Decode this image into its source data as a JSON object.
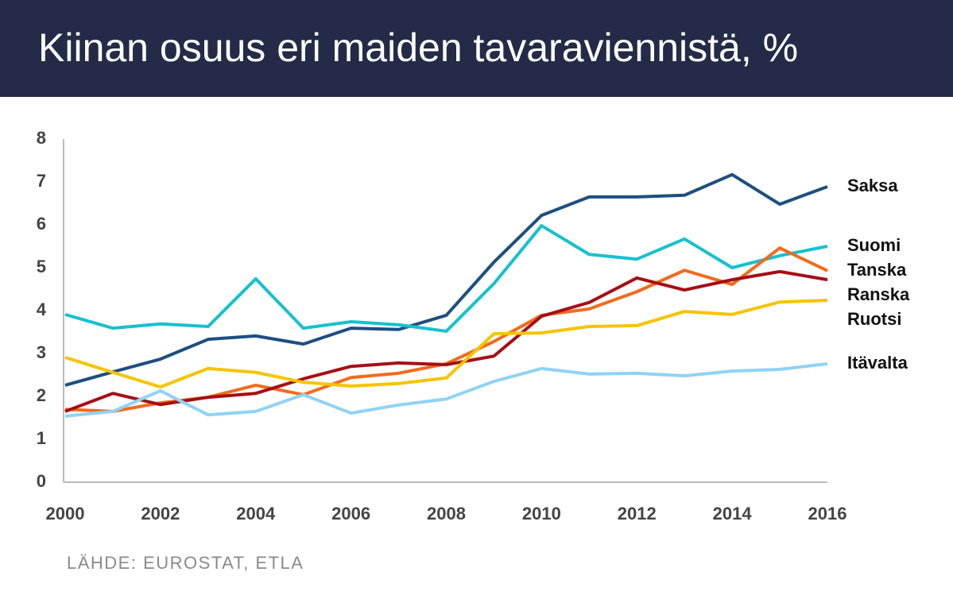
{
  "chart_data": {
    "type": "line",
    "title": "Kiinan osuus eri maiden tavaraviennistä, %",
    "source": "LÄHDE: EUROSTAT, ETLA",
    "x": [
      2000,
      2001,
      2002,
      2003,
      2004,
      2005,
      2006,
      2007,
      2008,
      2009,
      2010,
      2011,
      2012,
      2013,
      2014,
      2015,
      2016
    ],
    "xlim": [
      2000,
      2016
    ],
    "xticks": [
      2000,
      2002,
      2004,
      2006,
      2008,
      2010,
      2012,
      2014,
      2016
    ],
    "ylim": [
      0,
      8
    ],
    "yticks": [
      0,
      1,
      2,
      3,
      4,
      5,
      6,
      7,
      8
    ],
    "grid": false,
    "series": [
      {
        "name": "Saksa",
        "color": "#1d4f80",
        "values": [
          2.26,
          2.57,
          2.87,
          3.33,
          3.41,
          3.22,
          3.59,
          3.56,
          3.89,
          5.13,
          6.22,
          6.65,
          6.65,
          6.69,
          7.17,
          6.48,
          6.89
        ]
      },
      {
        "name": "Suomi",
        "color": "#17c0cf",
        "values": [
          3.91,
          3.59,
          3.69,
          3.63,
          4.74,
          3.59,
          3.74,
          3.67,
          3.52,
          4.63,
          5.98,
          5.31,
          5.2,
          5.67,
          5.0,
          5.28,
          5.5
        ]
      },
      {
        "name": "Tanska",
        "color": "#f26b1d",
        "values": [
          1.7,
          1.65,
          1.85,
          1.98,
          2.26,
          2.04,
          2.44,
          2.54,
          2.76,
          3.28,
          3.89,
          4.04,
          4.44,
          4.94,
          4.61,
          5.46,
          4.93
        ]
      },
      {
        "name": "Ranska",
        "color": "#a50f15",
        "values": [
          1.65,
          2.07,
          1.81,
          1.98,
          2.07,
          2.41,
          2.7,
          2.78,
          2.74,
          2.94,
          3.87,
          4.19,
          4.76,
          4.48,
          4.72,
          4.91,
          4.72
        ]
      },
      {
        "name": "Ruotsi",
        "color": "#f5c400",
        "values": [
          2.91,
          2.56,
          2.22,
          2.65,
          2.56,
          2.33,
          2.24,
          2.3,
          2.43,
          3.46,
          3.48,
          3.63,
          3.65,
          3.98,
          3.91,
          4.2,
          4.24
        ]
      },
      {
        "name": "Itävalta",
        "color": "#8fd3f5",
        "values": [
          1.54,
          1.65,
          2.13,
          1.57,
          1.65,
          2.04,
          1.61,
          1.8,
          1.94,
          2.35,
          2.65,
          2.52,
          2.54,
          2.48,
          2.59,
          2.63,
          2.76
        ]
      }
    ]
  }
}
